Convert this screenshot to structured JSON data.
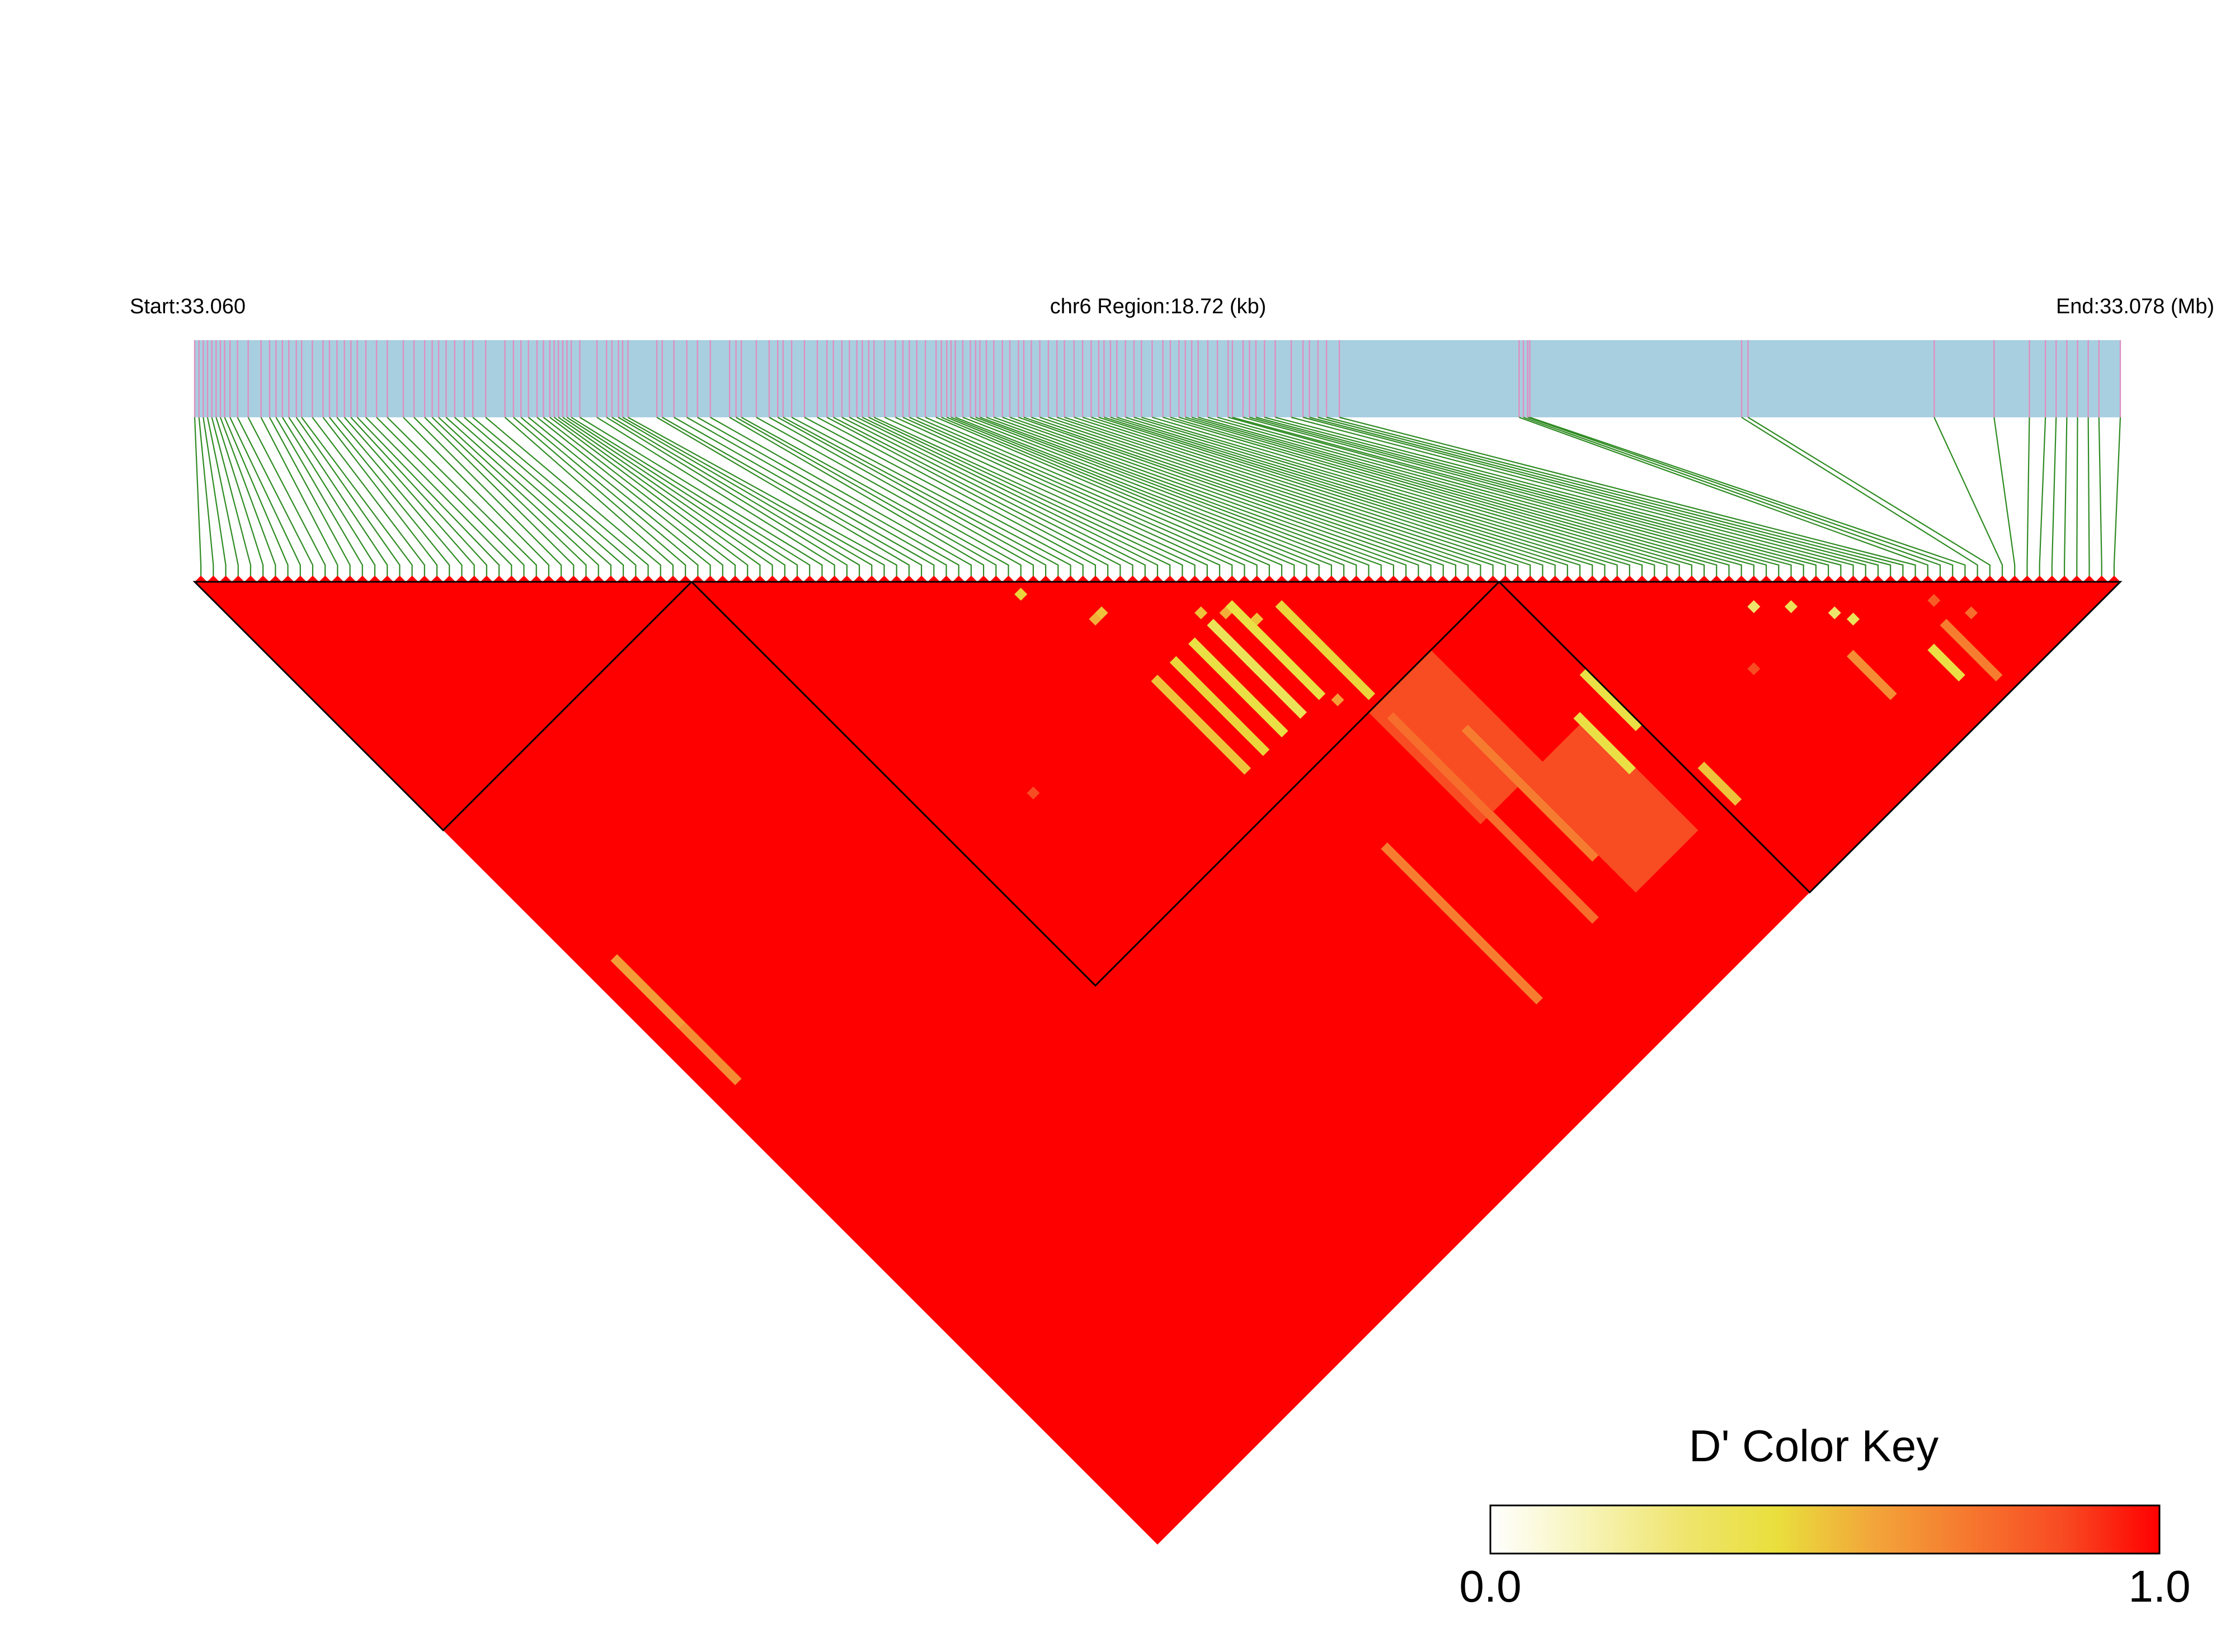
{
  "header": {
    "start_label": "Start:33.060",
    "region_label": "chr6 Region:18.72 (kb)",
    "end_label": "End:33.078 (Mb)"
  },
  "colors": {
    "track_fill": "#a8cfe0",
    "snp_tick": "#de8fc0",
    "connector": "#2e8b22",
    "strong_ld": "#ff0000",
    "block_outline": "#000000"
  },
  "legend": {
    "title": "D' Color Key",
    "min_label": "0.0",
    "max_label": "1.0",
    "gradient": [
      "#ffffff",
      "#f7f4b8",
      "#efe570",
      "#e9df3c",
      "#f2a63a",
      "#f6782f",
      "#f84a22",
      "#ff0000"
    ]
  },
  "chart_data": {
    "type": "heatmap",
    "metric": "D'",
    "region": {
      "chromosome": "chr6",
      "start_mb": 33.06,
      "end_mb": 33.078,
      "length_kb": 18.72
    },
    "snp_count": 155,
    "snp_positions_bp": [
      33060000,
      33060040,
      33060080,
      33060120,
      33060160,
      33060200,
      33060240,
      33060280,
      33060330,
      33060400,
      33060500,
      33060620,
      33060700,
      33060760,
      33060820,
      33060880,
      33060950,
      33061000,
      33061100,
      33061200,
      33061260,
      33061330,
      33061400,
      33061460,
      33061520,
      33061600,
      33061700,
      33061800,
      33061950,
      33062050,
      33062150,
      33062220,
      33062280,
      33062350,
      33062430,
      33062520,
      33062600,
      33062720,
      33062900,
      33062980,
      33063050,
      33063120,
      33063200,
      33063260,
      33063320,
      33063360,
      33063400,
      33063440,
      33063480,
      33063520,
      33063600,
      33063760,
      33063850,
      33063900,
      33063960,
      33064000,
      33064050,
      33064320,
      33064370,
      33064480,
      33064600,
      33064700,
      33064820,
      33065000,
      33065060,
      33065110,
      33065250,
      33065370,
      33065450,
      33065500,
      33065580,
      33065700,
      33065820,
      33065910,
      33065970,
      33066050,
      33066120,
      33066190,
      33066240,
      33066300,
      33066350,
      33066450,
      33066550,
      33066620,
      33066680,
      33066750,
      33066830,
      33066930,
      33066980,
      33067030,
      33067070,
      33067110,
      33067180,
      33067250,
      33067300,
      33067340,
      33067400,
      33067470,
      33067550,
      33067620,
      33067700,
      33067750,
      33067820,
      33067900,
      33067980,
      33068060,
      33068130,
      33068220,
      33068300,
      33068380,
      33068450,
      33068500,
      33068560,
      33068620,
      33068700,
      33068780,
      33068850,
      33068950,
      33069050,
      33069120,
      33069200,
      33069260,
      33069320,
      33069380,
      33069470,
      33069560,
      33069660,
      33069700,
      33069800,
      33069860,
      33069920,
      33070000,
      33070100,
      33070250,
      33070360,
      33070420,
      33070500,
      33070580,
      33070700,
      33072380,
      33072420,
      33072460,
      33072480,
      33074460,
      33074520,
      33076260,
      33076820,
      33077150,
      33077300,
      33077400,
      33077500,
      33077600,
      33077700,
      33077800,
      33078000
    ],
    "ld_blocks": [
      {
        "first_snp": 1,
        "last_snp": 40
      },
      {
        "first_snp": 41,
        "last_snp": 105
      },
      {
        "first_snp": 106,
        "last_snp": 155
      }
    ],
    "baseline_d_prime": 1.0,
    "reduced_d_prime_features": [
      {
        "type": "band",
        "snp_i": 4,
        "snp_j_from": 65,
        "snp_j_to": 75,
        "d_prime": 0.6
      },
      {
        "type": "band",
        "snp_i": 4,
        "snp_j_from": 76,
        "snp_j_to": 84,
        "d_prime": 0.65
      },
      {
        "type": "band",
        "snp_i": 70,
        "snp_j_from": 86,
        "snp_j_to": 100,
        "d_prime": 0.5
      },
      {
        "type": "band",
        "snp_i": 73,
        "snp_j_from": 86,
        "snp_j_to": 100,
        "d_prime": 0.45
      },
      {
        "type": "band",
        "snp_i": 76,
        "snp_j_from": 86,
        "snp_j_to": 100,
        "d_prime": 0.4
      },
      {
        "type": "band",
        "snp_i": 79,
        "snp_j_from": 86,
        "snp_j_to": 100,
        "d_prime": 0.35
      },
      {
        "type": "band",
        "snp_i": 82,
        "snp_j_from": 86,
        "snp_j_to": 100,
        "d_prime": 0.4
      },
      {
        "type": "band",
        "snp_i": 86,
        "snp_j_from": 90,
        "snp_j_to": 104,
        "d_prime": 0.45
      },
      {
        "type": "band",
        "snp_i": 86,
        "snp_j_from": 108,
        "snp_j_to": 140,
        "d_prime": 0.75
      },
      {
        "type": "band",
        "snp_i": 91,
        "snp_j_from": 115,
        "snp_j_to": 135,
        "d_prime": 0.7
      },
      {
        "type": "band",
        "snp_i": 75,
        "snp_j_from": 118,
        "snp_j_to": 142,
        "d_prime": 0.7
      },
      {
        "type": "band",
        "snp_i": 105,
        "snp_j_from": 120,
        "snp_j_to": 128,
        "d_prime": 0.4
      },
      {
        "type": "band",
        "snp_i": 101,
        "snp_j_from": 123,
        "snp_j_to": 131,
        "d_prime": 0.4
      },
      {
        "type": "band",
        "snp_i": 107,
        "snp_j_from": 137,
        "snp_j_to": 142,
        "d_prime": 0.5
      },
      {
        "type": "band",
        "snp_i": 138,
        "snp_j_from": 145,
        "snp_j_to": 153,
        "d_prime": 0.7
      },
      {
        "type": "band",
        "snp_i": 135,
        "snp_j_from": 146,
        "snp_j_to": 150,
        "d_prime": 0.4
      },
      {
        "type": "band",
        "snp_i": 128,
        "snp_j_from": 140,
        "snp_j_to": 146,
        "d_prime": 0.65
      },
      {
        "type": "region",
        "snp_i_from": 85,
        "snp_i_to": 94,
        "snp_j_from": 106,
        "snp_j_to": 123,
        "d_prime": 0.85
      },
      {
        "type": "region",
        "snp_i_from": 92,
        "snp_i_to": 101,
        "snp_j_from": 124,
        "snp_j_to": 141,
        "d_prime": 0.85
      },
      {
        "type": "cell",
        "snp_i": 66,
        "snp_j": 68,
        "d_prime": 0.45
      },
      {
        "type": "cell",
        "snp_i": 71,
        "snp_j": 76,
        "d_prime": 0.5
      },
      {
        "type": "cell",
        "snp_i": 70,
        "snp_j": 76,
        "d_prime": 0.55
      },
      {
        "type": "cell",
        "snp_i": 79,
        "snp_j": 84,
        "d_prime": 0.5
      },
      {
        "type": "cell",
        "snp_i": 81,
        "snp_j": 86,
        "d_prime": 0.55
      },
      {
        "type": "cell",
        "snp_i": 83,
        "snp_j": 89,
        "d_prime": 0.5
      },
      {
        "type": "cell",
        "snp_i": 83,
        "snp_j": 102,
        "d_prime": 0.6
      },
      {
        "type": "cell",
        "snp_i": 124,
        "snp_j": 128,
        "d_prime": 0.3
      },
      {
        "type": "cell",
        "snp_i": 127,
        "snp_j": 131,
        "d_prime": 0.35
      },
      {
        "type": "cell",
        "snp_i": 130,
        "snp_j": 135,
        "d_prime": 0.3
      },
      {
        "type": "cell",
        "snp_i": 131,
        "snp_j": 137,
        "d_prime": 0.35
      },
      {
        "type": "cell",
        "snp_i": 139,
        "snp_j": 142,
        "d_prime": 0.8
      },
      {
        "type": "cell",
        "snp_i": 141,
        "snp_j": 146,
        "d_prime": 0.75
      },
      {
        "type": "cell",
        "snp_i": 51,
        "snp_j": 85,
        "d_prime": 0.85
      },
      {
        "type": "cell",
        "snp_i": 119,
        "snp_j": 133,
        "d_prime": 0.85
      }
    ]
  }
}
